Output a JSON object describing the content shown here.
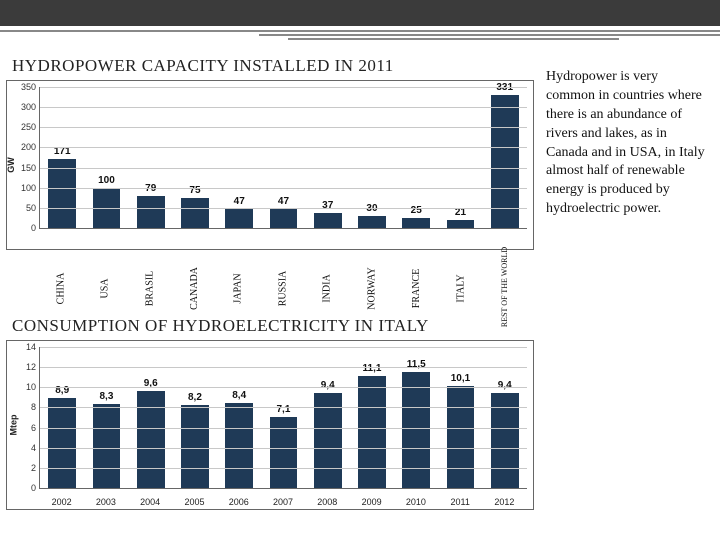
{
  "header": {
    "band_color": "#3b3b3b",
    "line_color": "#888"
  },
  "chart1": {
    "type": "bar",
    "title": "HYDROPOWER CAPACITY INSTALLED IN 2011",
    "ylabel": "GW",
    "ylim": [
      0,
      350
    ],
    "ytick_step": 50,
    "bar_color": "#1f3a57",
    "grid_color": "#c8c8c8",
    "categories": [
      "CHINA",
      "USA",
      "BRASIL",
      "CANADA",
      "JAPAN",
      "RUSSIA",
      "INDIA",
      "NORWAY",
      "FRANCE",
      "ITALY",
      "REST OF THE WORLD"
    ],
    "values": [
      171,
      100,
      79,
      75,
      47,
      47,
      37,
      30,
      25,
      21,
      331
    ],
    "value_labels": [
      "171",
      "100",
      "79",
      "75",
      "47",
      "47",
      "37",
      "30",
      "25",
      "21",
      "331"
    ]
  },
  "mid_title": "CONSUMPTION OF HYDROELECTRICITY IN ITALY",
  "chart2": {
    "type": "bar",
    "ylabel": "Mtep",
    "ylim": [
      0,
      14
    ],
    "ytick_step": 2,
    "bar_color": "#1f3a57",
    "grid_color": "#c8c8c8",
    "categories": [
      "2002",
      "2003",
      "2004",
      "2005",
      "2006",
      "2007",
      "2008",
      "2009",
      "2010",
      "2011",
      "2012"
    ],
    "values": [
      8.9,
      8.3,
      9.6,
      8.2,
      8.4,
      7.1,
      9.4,
      11.1,
      11.5,
      10.1,
      9.4
    ],
    "value_labels": [
      "8,9",
      "8,3",
      "9,6",
      "8,2",
      "8,4",
      "7,1",
      "9,4",
      "11,1",
      "11,5",
      "10,1",
      "9,4"
    ]
  },
  "side_text": "Hydropower is very common in countries where there is an abundance of rivers and lakes, as in Canada and in USA, in Italy almost half of renewable energy is produced by hydroelectric power."
}
